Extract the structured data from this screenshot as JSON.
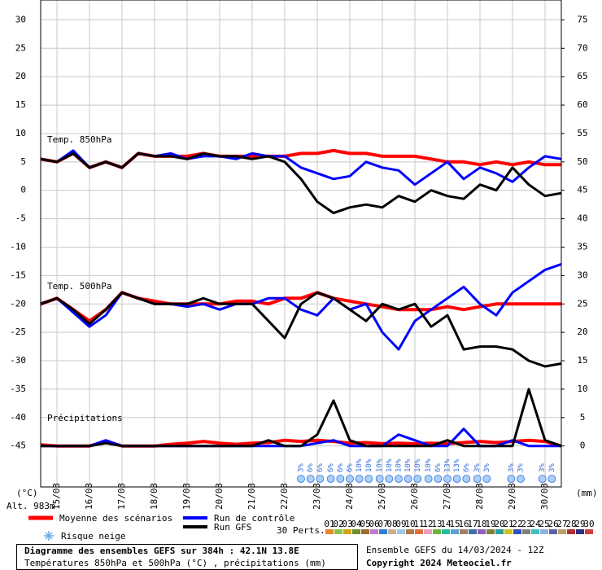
{
  "chart_data": {
    "type": "line",
    "title": "Diagramme des ensembles GEFS sur 384h : 42.1N 13.8E",
    "subtitle": "Températures 850hPa et 500hPa (°C) , précipitations (mm)",
    "run_label": "Ensemble GEFS du 14/03/2024 - 12Z",
    "copyright": "Copyright 2024 Meteociel.fr",
    "altitude": "Alt. 983m",
    "y_unit": "(°C)",
    "y2_unit": "(mm)",
    "annotations": [
      "Temp. 850hPa",
      "Temp. 500hPa",
      "Précipitations"
    ],
    "snow_label": "Risque neige",
    "perturbations_label": "30 Perts.",
    "perturbation_names": [
      "01",
      "02",
      "03",
      "04",
      "05",
      "06",
      "07",
      "08",
      "09",
      "10",
      "11",
      "12",
      "13",
      "14",
      "15",
      "16",
      "17",
      "18",
      "19",
      "20",
      "21",
      "22",
      "23",
      "24",
      "25",
      "26",
      "27",
      "28",
      "29",
      "30"
    ],
    "perturbation_colors": [
      "#e8872c",
      "#8bc34a",
      "#d4a017",
      "#6d8f2a",
      "#9c6b30",
      "#c07ad0",
      "#2b7fd0",
      "#c8b090",
      "#a0c8e8",
      "#b07a40",
      "#e0703c",
      "#f0a0c0",
      "#70b040",
      "#20c0a0",
      "#60a0d0",
      "#a08060",
      "#4070a0",
      "#9060c0",
      "#808040",
      "#2aa0a0",
      "#d0c020",
      "#3050c0",
      "#808080",
      "#40c0c0",
      "#90b0e0",
      "#6060a0",
      "#c0a060",
      "#b03030",
      "#303080",
      "#d04040"
    ],
    "x": [
      0,
      12,
      24,
      36,
      48,
      60,
      72,
      84,
      96,
      108,
      120,
      132,
      144,
      156,
      168,
      180,
      192,
      204,
      216,
      228,
      240,
      252,
      264,
      276,
      288,
      300,
      312,
      324,
      336,
      348,
      360,
      372,
      384
    ],
    "xlim": [
      0,
      384
    ],
    "xticks": [
      {
        "value": 12,
        "label": "15/03"
      },
      {
        "value": 36,
        "label": "16/03"
      },
      {
        "value": 60,
        "label": "17/03"
      },
      {
        "value": 84,
        "label": "18/03"
      },
      {
        "value": 108,
        "label": "19/03"
      },
      {
        "value": 132,
        "label": "20/03"
      },
      {
        "value": 156,
        "label": "21/03"
      },
      {
        "value": 180,
        "label": "22/03"
      },
      {
        "value": 204,
        "label": "23/03"
      },
      {
        "value": 228,
        "label": "24/03"
      },
      {
        "value": 252,
        "label": "25/03"
      },
      {
        "value": 276,
        "label": "26/03"
      },
      {
        "value": 300,
        "label": "27/03"
      },
      {
        "value": 324,
        "label": "28/03"
      },
      {
        "value": 348,
        "label": "29/03"
      },
      {
        "value": 372,
        "label": "30/03"
      }
    ],
    "ylim": [
      -52.5,
      33.5
    ],
    "yticks": [
      -45,
      -40,
      -35,
      -30,
      -25,
      -20,
      -15,
      -10,
      -5,
      0,
      5,
      10,
      15,
      20,
      25,
      30
    ],
    "y2lim": [
      -7.5,
      78.5
    ],
    "y2ticks": [
      0,
      5,
      10,
      15,
      20,
      25,
      30,
      35,
      40,
      45,
      50,
      55,
      60,
      65,
      70,
      75
    ],
    "grid": true,
    "series": [
      {
        "name": "Moyenne des scénarios",
        "color": "#ff0000",
        "width": 4,
        "values": [
          5.5,
          5,
          6.5,
          4,
          5,
          4,
          6.5,
          6,
          6,
          6,
          6.5,
          6,
          6,
          6,
          6,
          6,
          6.5,
          6.5,
          7,
          6.5,
          6.5,
          6,
          6,
          6,
          5.5,
          5,
          5,
          4.5,
          5,
          4.5,
          5,
          4.5,
          4.5
        ]
      },
      {
        "name": "Run de contrôle",
        "color": "#0000ff",
        "width": 3,
        "values": [
          5.5,
          5,
          7,
          4,
          5,
          4,
          6.5,
          6,
          6.5,
          5.5,
          6,
          6,
          5.5,
          6.5,
          6,
          6,
          4,
          3,
          2,
          2.5,
          5,
          4,
          3.5,
          1,
          3,
          5,
          2,
          4,
          3,
          1.5,
          4,
          6,
          5.5
        ]
      },
      {
        "name": "Run GFS",
        "color": "#000000",
        "width": 3,
        "values": [
          5.5,
          5,
          6.5,
          4,
          5,
          4,
          6.5,
          6,
          6,
          5.5,
          6.5,
          6,
          6,
          5.5,
          6,
          5,
          2,
          -2,
          -4,
          -3,
          -2.5,
          -3,
          -1,
          -2,
          0,
          -1,
          -1.5,
          1,
          0,
          4,
          1,
          -1,
          -0.5
        ]
      },
      {
        "name": "Moyenne des scénarios",
        "color": "#ff0000",
        "width": 4,
        "values": [
          -20,
          -19,
          -21,
          -23,
          -21,
          -18,
          -19,
          -19.5,
          -20,
          -20,
          -20,
          -20,
          -19.5,
          -19.5,
          -20,
          -19,
          -19,
          -18,
          -19,
          -19.5,
          -20,
          -20.5,
          -21,
          -21,
          -21,
          -20.5,
          -21,
          -20.5,
          -20,
          -20,
          -20,
          -20,
          -20
        ]
      },
      {
        "name": "Run de contrôle",
        "color": "#0000ff",
        "width": 3,
        "values": [
          -20,
          -19,
          -21.5,
          -24,
          -22,
          -18,
          -19,
          -20,
          -20,
          -20.5,
          -20,
          -21,
          -20,
          -20,
          -19,
          -19,
          -21,
          -22,
          -19,
          -21,
          -20,
          -25,
          -28,
          -23,
          -21,
          -19,
          -17,
          -20,
          -22,
          -18,
          -16,
          -14,
          -13
        ]
      },
      {
        "name": "Run GFS",
        "color": "#000000",
        "width": 3,
        "values": [
          -20,
          -19,
          -21,
          -23.5,
          -21,
          -18,
          -19,
          -20,
          -20,
          -20,
          -19,
          -20,
          -20,
          -20,
          -23,
          -26,
          -20,
          -18,
          -19,
          -21,
          -23,
          -20,
          -21,
          -20,
          -24,
          -22,
          -28,
          -27.5,
          -27.5,
          -28,
          -30,
          -31,
          -30.5
        ]
      },
      {
        "name": "Moyenne des scénarios",
        "color": "#ff0000",
        "width": 4,
        "axis": "y2",
        "values": [
          0.2,
          0,
          0,
          0,
          0.8,
          0,
          0,
          0,
          0.3,
          0.5,
          0.8,
          0.5,
          0.3,
          0.5,
          0.6,
          1,
          0.8,
          1,
          0.8,
          0.5,
          0.6,
          0.4,
          0.5,
          0.4,
          0.5,
          0.4,
          0.6,
          0.8,
          0.6,
          0.8,
          1,
          0.8,
          0
        ]
      },
      {
        "name": "Run de contrôle",
        "color": "#0000ff",
        "width": 3,
        "axis": "y2",
        "values": [
          0,
          0,
          0,
          0,
          1,
          0,
          0,
          0,
          0,
          0,
          0,
          0,
          0,
          0,
          0,
          0,
          0,
          0.5,
          1,
          0,
          0,
          0,
          2,
          1,
          0,
          0,
          3,
          0,
          0,
          1,
          0,
          0,
          0
        ]
      },
      {
        "name": "Run GFS",
        "color": "#000000",
        "width": 3,
        "axis": "y2",
        "values": [
          0,
          0,
          0,
          0,
          0.5,
          0,
          0,
          0,
          0,
          0,
          0,
          0,
          0,
          0,
          1,
          0,
          0,
          2,
          8,
          1,
          0,
          0,
          0,
          0,
          0,
          1,
          0,
          0,
          0,
          0,
          10,
          1,
          0
        ]
      }
    ],
    "snow_risk": {
      "color": "#3a6fd8",
      "x": [
        192,
        199,
        206,
        214,
        221,
        228,
        235,
        242,
        250,
        257,
        264,
        271,
        278,
        286,
        293,
        300,
        307,
        314,
        322,
        329,
        347,
        354,
        370,
        377
      ],
      "values": [
        3,
        6,
        6,
        6,
        6,
        6,
        10,
        10,
        10,
        10,
        10,
        10,
        10,
        10,
        6,
        13,
        13,
        6,
        3,
        3,
        3,
        3,
        3,
        3
      ],
      "value_labels": [
        "3%",
        "6%",
        "6%",
        "6%",
        "6%",
        "6%",
        "10%",
        "10%",
        "10%",
        "10%",
        "10%",
        "10%",
        "10%",
        "10%",
        "6%",
        "13%",
        "13%",
        "6%",
        "3%",
        "3%",
        "3%",
        "3%",
        "3%",
        "3%"
      ]
    }
  }
}
